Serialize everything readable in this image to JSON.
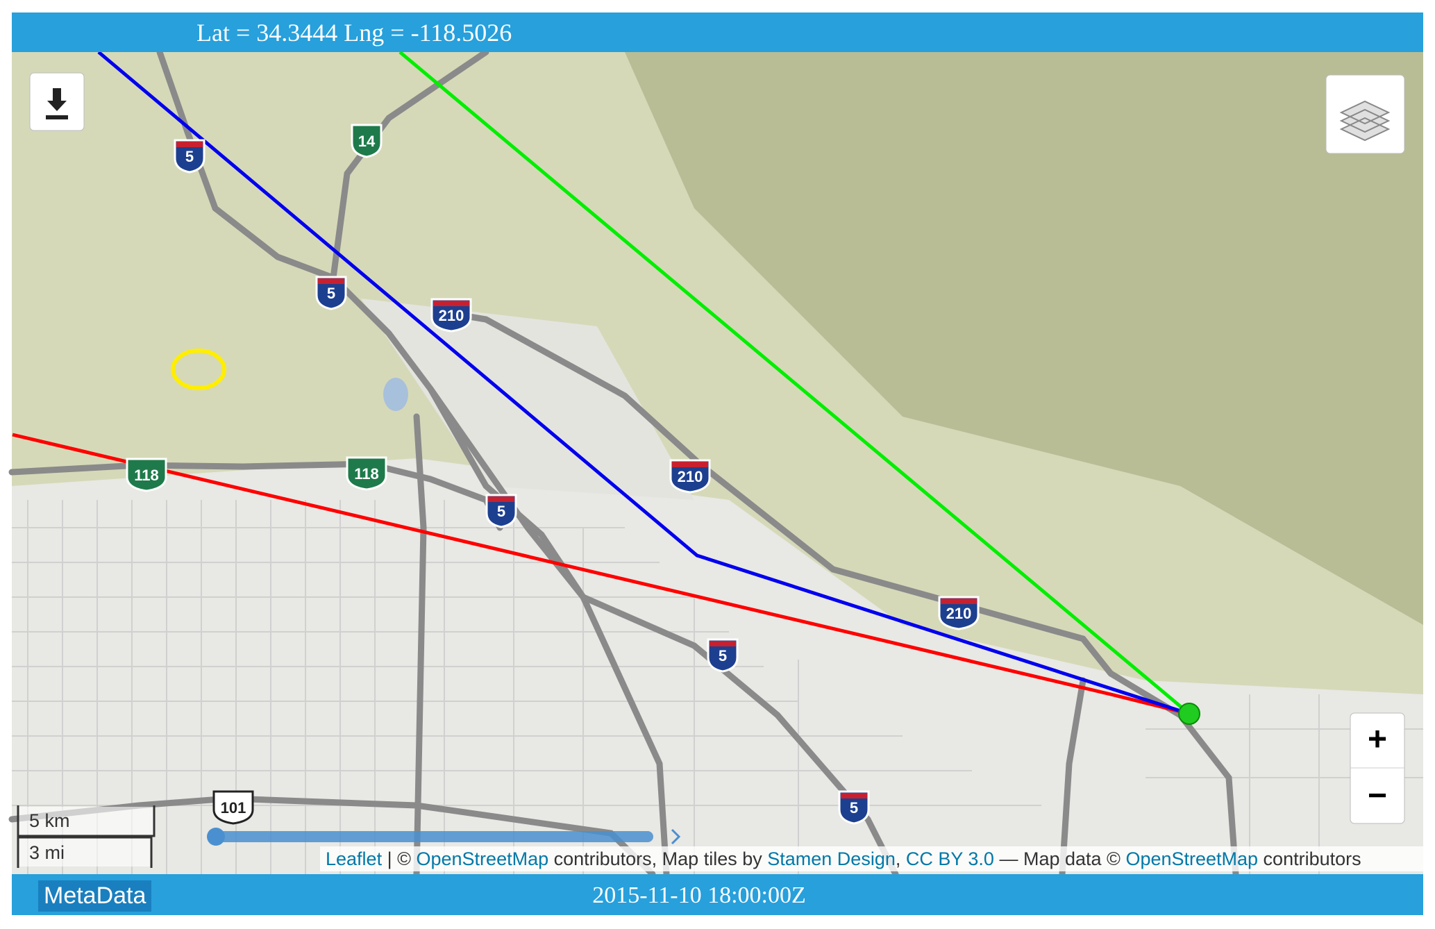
{
  "header": {
    "coordinates": "Lat = 34.3444 Lng = -118.5026"
  },
  "footer": {
    "metadata_button": "MetaData",
    "timestamp": "2015-11-10 18:00:00Z"
  },
  "map": {
    "scale": [
      "5 km",
      "3 mi"
    ],
    "zoom": [
      "+",
      "−"
    ],
    "road_shields": [
      "5",
      "14",
      "5",
      "210",
      "118",
      "118",
      "5",
      "210",
      "210",
      "5",
      "5",
      "101"
    ],
    "attribution": [
      "Leaflet",
      " | © ",
      "OpenStreetMap",
      " contributors, Map tiles by ",
      "Stamen Design",
      ", ",
      "CC BY 3.0",
      " — Map data © ",
      "OpenStreetMap",
      " contributors"
    ]
  }
}
